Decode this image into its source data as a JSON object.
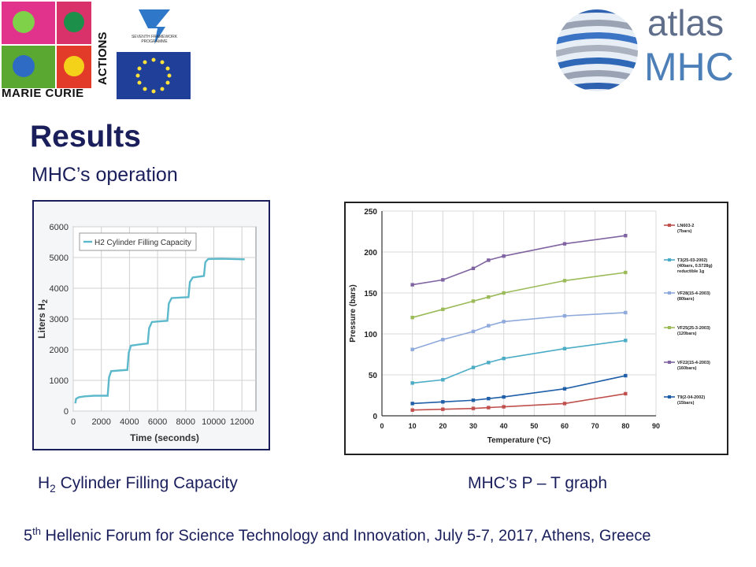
{
  "logos": {
    "marie_curie_text": "MARIE CURIE",
    "marie_curie_actions": "ACTIONS",
    "fp7_label": "SEVENTH FRAMEWORK PROGRAMME",
    "atlas": "atlas",
    "mhc": "MHC"
  },
  "colors": {
    "title": "#1a1f5c",
    "filling_line": "#5cb9cc",
    "series": [
      "#c0504d",
      "#4bacc6",
      "#8ea9db",
      "#9bbb59",
      "#8064a2",
      "#1f5fa8"
    ]
  },
  "slide": {
    "title": "Results",
    "subtitle": "MHC’s operation",
    "caption1_pre": "H",
    "caption1_sub": "2",
    "caption1_post": " Cylinder Filling Capacity",
    "caption2": "MHC’s P – T graph",
    "footer_sup": "th",
    "footer_pre": "5",
    "footer_post": " Hellenic Forum for Science Technology and Innovation, July 5-7, 2017, Athens, Greece"
  },
  "chart_data": [
    {
      "type": "line",
      "legend": [
        "H2 Cylinder Filling Capacity"
      ],
      "xlabel": "Time (seconds)",
      "ylabel_pre": "Liters H",
      "ylabel_sub": "2",
      "xlim": [
        0,
        13000
      ],
      "ylim": [
        0,
        6000
      ],
      "xticks": [
        0,
        2000,
        4000,
        6000,
        8000,
        10000,
        12000
      ],
      "yticks": [
        0,
        1000,
        2000,
        3000,
        4000,
        5000,
        6000
      ],
      "grid": true,
      "legend_position": "top-left",
      "x": [
        150,
        200,
        400,
        800,
        1500,
        2450,
        2550,
        2700,
        3500,
        3850,
        3950,
        4100,
        4900,
        5300,
        5400,
        5600,
        6400,
        6700,
        6800,
        7000,
        7800,
        8200,
        8300,
        8500,
        9000,
        9300,
        9400,
        9600,
        10500,
        12200
      ],
      "y": [
        250,
        400,
        450,
        480,
        500,
        500,
        1100,
        1300,
        1330,
        1340,
        1900,
        2130,
        2180,
        2200,
        2700,
        2900,
        2930,
        2940,
        3500,
        3680,
        3700,
        3710,
        4200,
        4350,
        4380,
        4400,
        4850,
        4950,
        4960,
        4940
      ]
    },
    {
      "type": "line",
      "xlabel": "Temperature (°C)",
      "ylabel": "Pressure (bars)",
      "xlim": [
        0,
        90
      ],
      "ylim": [
        0,
        250
      ],
      "xticks": [
        0,
        10,
        20,
        30,
        40,
        50,
        60,
        70,
        80,
        90
      ],
      "yticks": [
        0,
        50,
        100,
        150,
        200,
        250
      ],
      "grid": true,
      "legend_position": "right",
      "x": [
        10,
        20,
        30,
        35,
        40,
        60,
        80
      ],
      "series": [
        {
          "name": "LN603-2 (7bars)",
          "values": [
            7,
            8,
            9,
            10,
            11,
            15,
            27
          ]
        },
        {
          "name": "T3(25-03-2002) (40bars, 0.5728g) reductible 1g",
          "values": [
            40,
            44,
            59,
            65,
            70,
            82,
            92
          ]
        },
        {
          "name": "VF28(15-4-2003) (80bars)",
          "values": [
            81,
            93,
            103,
            110,
            115,
            122,
            126
          ]
        },
        {
          "name": "VF25(25-3-2003) (120bars)",
          "values": [
            120,
            130,
            140,
            145,
            150,
            165,
            175
          ]
        },
        {
          "name": "VF22(15-4-2003) (160bars)",
          "values": [
            160,
            166,
            180,
            190,
            195,
            210,
            220
          ]
        },
        {
          "name": "T9(2-04-2002) (15bars)",
          "values": [
            15,
            17,
            19,
            21,
            23,
            33,
            49
          ]
        }
      ]
    }
  ]
}
